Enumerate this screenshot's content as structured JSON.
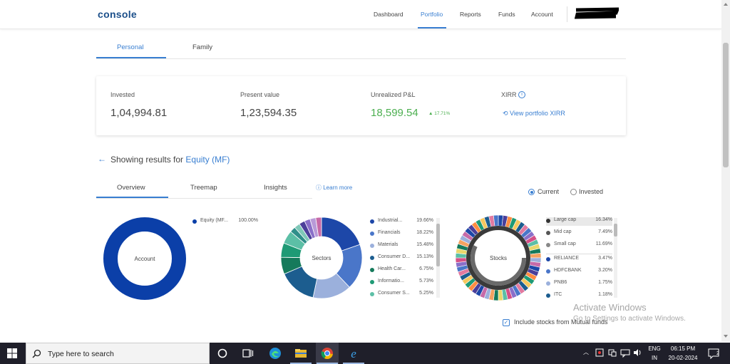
{
  "app": {
    "logo": "console",
    "nav": [
      "Dashboard",
      "Portfolio",
      "Reports",
      "Funds",
      "Account"
    ],
    "active_nav": "Portfolio"
  },
  "portfolio_tabs": [
    "Personal",
    "Family"
  ],
  "summary": {
    "invested_label": "Invested",
    "invested_value": "1,04,994.81",
    "present_label": "Present value",
    "present_value": "1,23,594.35",
    "pnl_label": "Unrealized P&L",
    "pnl_value": "18,599.54",
    "pnl_pct": "▲ 17.71%",
    "xirr_label": "XIRR",
    "xirr_link": "View portfolio XIRR"
  },
  "results": {
    "prefix": "Showing results for",
    "highlight": "Equity (MF)"
  },
  "sub_tabs": [
    "Overview",
    "Treemap",
    "Insights"
  ],
  "learn_more": "Learn more",
  "toggle": {
    "current": "Current",
    "invested": "Invested",
    "selected": "Current"
  },
  "charts": {
    "account": {
      "center": "Account",
      "legend": [
        {
          "name": "Equity (MF...",
          "pct": "100.00%",
          "color": "#0b3fa8"
        }
      ]
    },
    "sectors": {
      "center": "Sectors",
      "legend": [
        {
          "name": "Industrial...",
          "pct": "19.66%",
          "color": "#1d47a8"
        },
        {
          "name": "Financials",
          "pct": "18.22%",
          "color": "#4a76c9"
        },
        {
          "name": "Materials",
          "pct": "15.48%",
          "color": "#9bb0dc"
        },
        {
          "name": "Consumer D...",
          "pct": "15.13%",
          "color": "#1c5d8f"
        },
        {
          "name": "Health Car...",
          "pct": "6.75%",
          "color": "#157a5b"
        },
        {
          "name": "Informatio...",
          "pct": "5.73%",
          "color": "#1e9a75"
        },
        {
          "name": "Consumer S...",
          "pct": "5.25%",
          "color": "#5cbfa6"
        }
      ]
    },
    "stocks": {
      "center": "Stocks",
      "legend": [
        {
          "name": "Large cap",
          "pct": "16.34%",
          "color": "#333333"
        },
        {
          "name": "Mid cap",
          "pct": "7.49%",
          "color": "#555555"
        },
        {
          "name": "Small cap",
          "pct": "11.69%",
          "color": "#888888"
        },
        {
          "name": "RELIANCE",
          "pct": "3.47%",
          "color": "#1d47a8"
        },
        {
          "name": "HDFCBANK",
          "pct": "3.20%",
          "color": "#4a76c9"
        },
        {
          "name": "PNB6",
          "pct": "1.75%",
          "color": "#9bb0dc"
        },
        {
          "name": "ITC",
          "pct": "1.18%",
          "color": "#1c5d8f"
        }
      ]
    }
  },
  "include_stocks_label": "Include stocks from Mutual funds",
  "watermark": {
    "title": "Activate Windows",
    "subtitle": "Go to Settings to activate Windows."
  },
  "taskbar": {
    "search_placeholder": "Type here to search",
    "lang_top": "ENG",
    "lang_bottom": "IN",
    "time": "06:15 PM",
    "date": "20-02-2024",
    "notification_count": "2"
  }
}
